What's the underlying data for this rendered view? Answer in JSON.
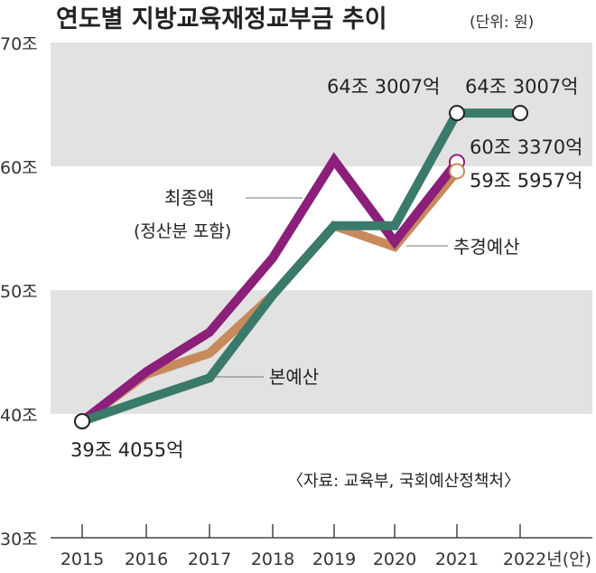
{
  "chart_data": {
    "type": "line",
    "title": "연도별 지방교육재정교부금 추이",
    "unit": "(단위: 원)",
    "categories": [
      "2015",
      "2016",
      "2017",
      "2018",
      "2019",
      "2020",
      "2021",
      "2022년(안)"
    ],
    "yticks": [
      {
        "v": 30,
        "label": "30조"
      },
      {
        "v": 40,
        "label": "40조"
      },
      {
        "v": 50,
        "label": "50조"
      },
      {
        "v": 60,
        "label": "60조"
      },
      {
        "v": 70,
        "label": "70조"
      }
    ],
    "ylim": [
      30,
      70
    ],
    "bands": [
      [
        40,
        50
      ],
      [
        60,
        70
      ]
    ],
    "series": [
      {
        "name": "추경예산",
        "color": "#c8895c",
        "values": [
          39.41,
          43.2,
          44.9,
          49.6,
          55.2,
          53.5,
          59.6,
          null
        ]
      },
      {
        "name": "최종액",
        "color": "#8b1f7a",
        "values": [
          39.41,
          43.4,
          46.6,
          52.6,
          60.5,
          53.9,
          60.34,
          null
        ]
      },
      {
        "name": "본예산",
        "color": "#3a7a6a",
        "values": [
          39.41,
          41.2,
          42.9,
          49.6,
          55.2,
          55.2,
          64.3,
          64.3
        ]
      }
    ],
    "series_labels": [
      {
        "text": "최종액",
        "sub": "(정산분 포함)"
      },
      {
        "text": "추경예산"
      },
      {
        "text": "본예산"
      }
    ],
    "annotations": [
      "39조 4055억",
      "64조 3007억",
      "64조 3007억",
      "60조 3370억",
      "59조 5957억"
    ],
    "source": "〈자료: 교육부, 국회예산정책처〉"
  }
}
